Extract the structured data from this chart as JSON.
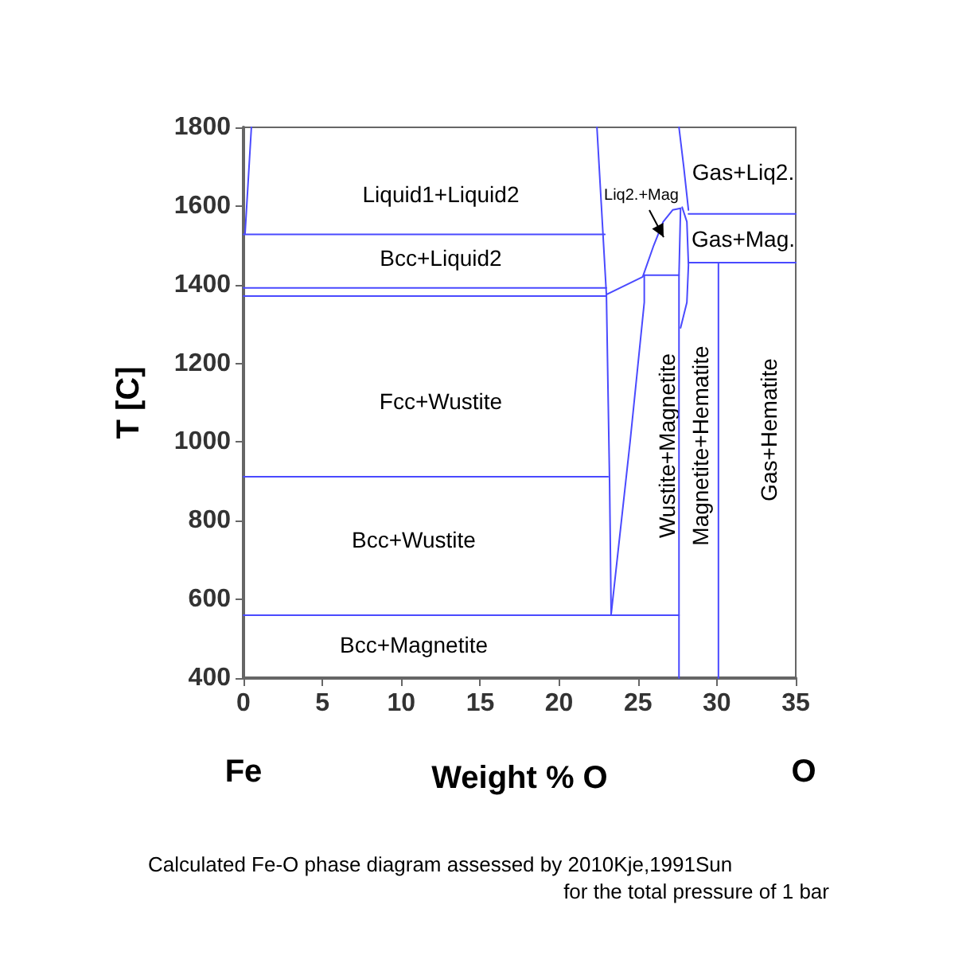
{
  "chart_data": {
    "type": "line",
    "xlabel": "Weight % O",
    "ylabel": "T [C]",
    "xlim": [
      0,
      35
    ],
    "xticks": [
      0,
      5,
      10,
      15,
      20,
      25,
      30,
      35
    ],
    "ylim": [
      400,
      1800
    ],
    "yticks": [
      400,
      600,
      800,
      1000,
      1200,
      1400,
      1600,
      1800
    ],
    "grid": false,
    "marker": "none",
    "line_style": "solid",
    "series": [
      {
        "color": "#4a4aff",
        "x": [
          0.1,
          0.5
        ],
        "values": [
          1530,
          1800
        ]
      },
      {
        "color": "#4a4aff",
        "x": [
          0,
          22.9
        ],
        "values": [
          1528,
          1528
        ]
      },
      {
        "color": "#4a4aff",
        "x": [
          0,
          23.0
        ],
        "values": [
          1392,
          1392
        ]
      },
      {
        "color": "#4a4aff",
        "x": [
          0,
          23.0
        ],
        "values": [
          1371,
          1371
        ]
      },
      {
        "color": "#4a4aff",
        "x": [
          0,
          23.1
        ],
        "values": [
          912,
          912
        ]
      },
      {
        "color": "#4a4aff",
        "x": [
          0,
          27.6
        ],
        "values": [
          560,
          560
        ]
      },
      {
        "color": "#4a4aff",
        "x": [
          22.4,
          23.0,
          23.2,
          23.3
        ],
        "values": [
          1800,
          1375,
          900,
          562
        ]
      },
      {
        "color": "#4a4aff",
        "x": [
          23.3,
          24.5,
          25.4,
          25.4
        ],
        "values": [
          562,
          1000,
          1355,
          1424
        ]
      },
      {
        "color": "#4a4aff",
        "x": [
          23.0,
          25.3,
          26.0,
          26.6,
          27.2,
          27.7
        ],
        "values": [
          1375,
          1420,
          1500,
          1560,
          1590,
          1594
        ]
      },
      {
        "color": "#4a4aff",
        "x": [
          25.4,
          27.6
        ],
        "values": [
          1424,
          1424
        ]
      },
      {
        "color": "#4a4aff",
        "x": [
          27.6,
          27.9,
          28.2
        ],
        "values": [
          1800,
          1700,
          1590
        ]
      },
      {
        "color": "#4a4aff",
        "x": [
          27.6,
          27.6,
          27.7
        ],
        "values": [
          400,
          1424,
          1594
        ]
      },
      {
        "color": "#4a4aff",
        "x": [
          27.8,
          28.1,
          28.2,
          28.1,
          27.7
        ],
        "values": [
          1597,
          1560,
          1450,
          1355,
          1290
        ]
      },
      {
        "color": "#4a4aff",
        "x": [
          28.2,
          35
        ],
        "values": [
          1580,
          1580
        ]
      },
      {
        "color": "#4a4aff",
        "x": [
          28.2,
          35
        ],
        "values": [
          1456,
          1456
        ]
      },
      {
        "color": "#4a4aff",
        "x": [
          30.1,
          30.1
        ],
        "values": [
          1456,
          400
        ]
      }
    ],
    "annotations": [
      "Liquid1+Liquid2",
      "Bcc+Liquid2",
      "Fcc+Wustite",
      "Bcc+Wustite",
      "Bcc+Magnetite",
      "Liq2.+Mag",
      "Gas+Liq2.",
      "Gas+Mag.",
      "Wustite+Magnetite",
      "Magnetite+Hematite",
      "Gas+Hematite",
      "Fe",
      "O",
      "Calculated Fe-O phase diagram assessed by 2010Kje,1991Sun",
      "for the total pressure of 1 bar"
    ]
  }
}
